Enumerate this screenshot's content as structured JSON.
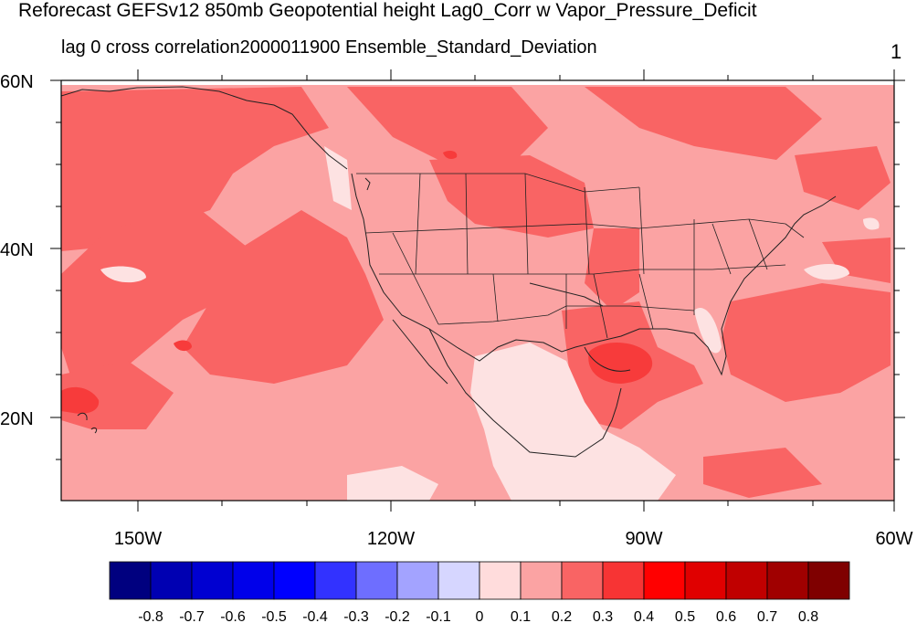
{
  "title": "Reforecast GEFSv12 850mb Geopotential height Lag0_Corr w Vapor_Pressure_Deficit",
  "subtitle": "lag 0 cross correlation2000011900 Ensemble_Standard_Deviation",
  "corner_label": "1",
  "map": {
    "lat_labels": [
      "60N",
      "40N",
      "20N"
    ],
    "lon_labels": [
      "150W",
      "120W",
      "90W",
      "60W"
    ],
    "lat_range": [
      10,
      60
    ],
    "lon_range": [
      -160,
      -60
    ],
    "colors": {
      "c00": "#fde2e2",
      "c01": "#fba3a3",
      "c02": "#f96464",
      "c03": "#f73b3b",
      "land_line": "#222222"
    }
  },
  "colorbar": {
    "colors": [
      "#00007f",
      "#0000b2",
      "#0000d1",
      "#0000ea",
      "#0000ff",
      "#3232ff",
      "#6e6eff",
      "#a3a3ff",
      "#d6d6ff",
      "#ffdcdc",
      "#fba3a3",
      "#f96464",
      "#f73434",
      "#ff0000",
      "#e00000",
      "#c00000",
      "#a00000",
      "#7f0000"
    ],
    "labels": [
      "-0.8",
      "-0.7",
      "-0.6",
      "-0.5",
      "-0.4",
      "-0.3",
      "-0.2",
      "-0.1",
      "0",
      "0.1",
      "0.2",
      "0.3",
      "0.4",
      "0.5",
      "0.6",
      "0.7",
      "0.8"
    ]
  }
}
